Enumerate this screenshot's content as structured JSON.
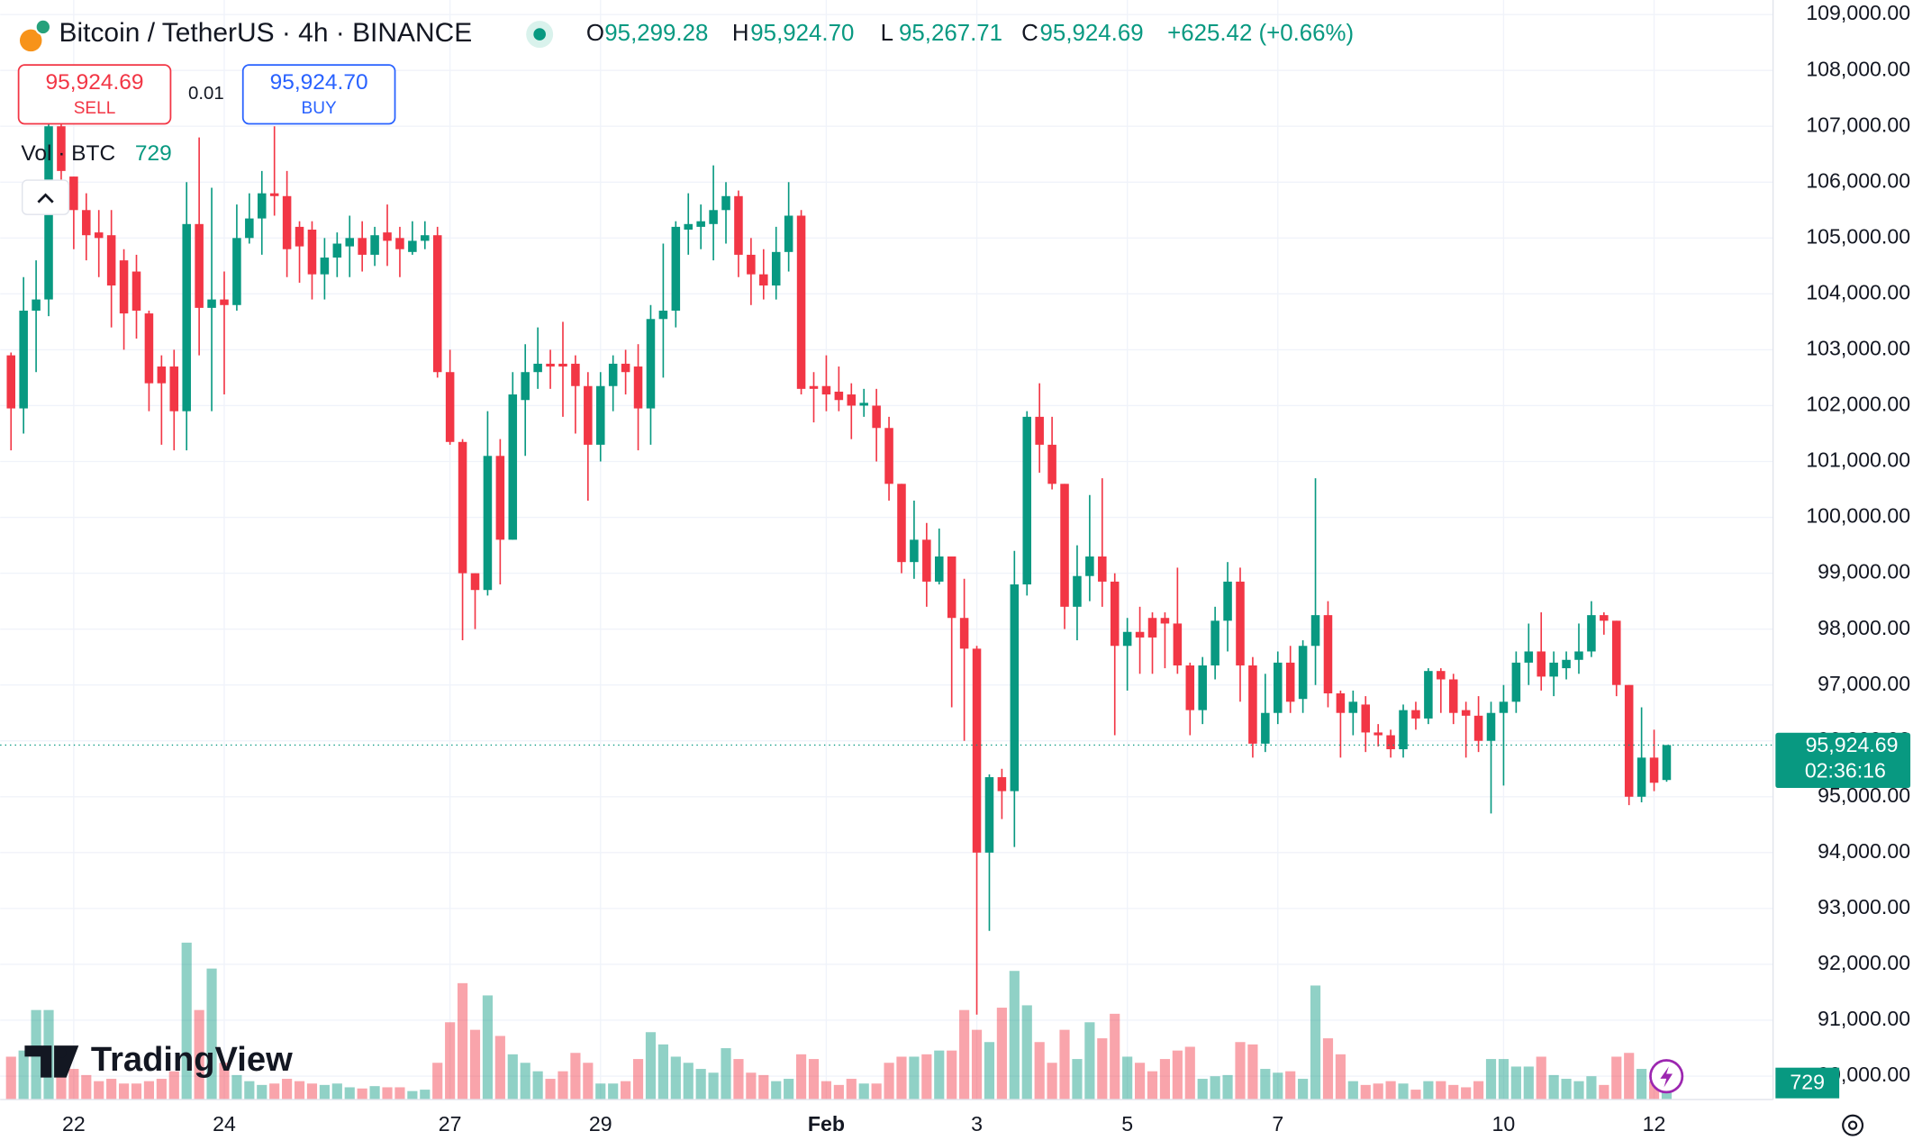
{
  "chart_data": {
    "type": "candlestick",
    "title": "Bitcoin / TetherUS · 4h · BINANCE",
    "header": [
      {
        "key": "O",
        "text": "95,299.28"
      },
      {
        "key": "H",
        "text": "95,924.70"
      },
      {
        "key": "L",
        "text": "95,267.71"
      },
      {
        "key": "C",
        "text": "95,924.69"
      }
    ],
    "change": "+625.42 (+0.66%)",
    "sell": {
      "price": "95,924.69",
      "label": "SELL"
    },
    "spread": "0.01",
    "buy": {
      "price": "95,924.70",
      "label": "BUY"
    },
    "volume_label": "Vol · BTC",
    "countdown": "02:36:16",
    "watermark": "TradingView",
    "categories": [
      null,
      null,
      null,
      null,
      null,
      "22",
      null,
      null,
      null,
      null,
      null,
      null,
      null,
      null,
      null,
      null,
      null,
      "24",
      null,
      null,
      null,
      null,
      null,
      null,
      null,
      null,
      null,
      null,
      null,
      null,
      null,
      null,
      null,
      null,
      null,
      "27",
      null,
      null,
      null,
      null,
      null,
      null,
      null,
      null,
      null,
      null,
      null,
      "29",
      null,
      null,
      null,
      null,
      null,
      null,
      null,
      null,
      null,
      null,
      null,
      null,
      null,
      null,
      null,
      null,
      null,
      "Feb",
      null,
      null,
      null,
      null,
      null,
      null,
      null,
      null,
      null,
      null,
      null,
      "3",
      null,
      null,
      null,
      null,
      null,
      null,
      null,
      null,
      null,
      null,
      null,
      "5",
      null,
      null,
      null,
      null,
      null,
      null,
      null,
      null,
      null,
      null,
      null,
      "7",
      null,
      null,
      null,
      null,
      null,
      null,
      null,
      null,
      null,
      null,
      null,
      null,
      null,
      null,
      null,
      null,
      null,
      "10",
      null,
      null,
      null,
      null,
      null,
      null,
      null,
      null,
      null,
      null,
      null,
      "12",
      null
    ],
    "open": [
      102900,
      101950,
      103700,
      103900,
      107000,
      106100,
      105500,
      105100,
      105050,
      104600,
      104400,
      103650,
      102700,
      102700,
      101900,
      105250,
      103750,
      103900,
      103800,
      105000,
      105350,
      105800,
      105750,
      105200,
      105150,
      104350,
      104650,
      104850,
      105000,
      104700,
      105100,
      105000,
      104750,
      104950,
      105050,
      102600,
      101350,
      99000,
      98700,
      101100,
      99600,
      102100,
      102600,
      102750,
      102750,
      102750,
      102350,
      101300,
      102350,
      102750,
      102700,
      101950,
      103550,
      103700,
      105150,
      105200,
      105250,
      105500,
      105750,
      104700,
      104350,
      104150,
      104750,
      105400,
      102350,
      102350,
      102250,
      102200,
      102000,
      102000,
      101600,
      100600,
      99200,
      99600,
      98850,
      99300,
      98200,
      97650,
      94000,
      95350,
      95100,
      98800,
      101800,
      101300,
      100600,
      98400,
      98950,
      99300,
      98850,
      97700,
      97950,
      98200,
      98200,
      98100,
      97350,
      96550,
      97350,
      98150,
      98850,
      97350,
      95950,
      96500,
      97400,
      96750,
      97700,
      98250,
      96850,
      96500,
      96650,
      96150,
      96100,
      95850,
      96550,
      96400,
      97250,
      97100,
      96550,
      96450,
      96000,
      96500,
      96700,
      97400,
      97600,
      97150,
      97300,
      97450,
      97600,
      98250,
      98150,
      97000,
      95000,
      95700,
      95299.28
    ],
    "high": [
      102950,
      104300,
      104600,
      107100,
      107300,
      106100,
      105800,
      105500,
      105500,
      104800,
      104700,
      103700,
      102900,
      103000,
      106000,
      106800,
      105900,
      104400,
      105600,
      105800,
      106200,
      107000,
      106200,
      105300,
      105300,
      105000,
      105100,
      105400,
      105300,
      105200,
      105600,
      105200,
      105300,
      105300,
      105200,
      103000,
      101400,
      99000,
      101900,
      101400,
      102600,
      103100,
      103400,
      103000,
      103500,
      102900,
      102600,
      102600,
      102900,
      103000,
      103100,
      103800,
      104900,
      105300,
      105800,
      105600,
      106300,
      106000,
      105850,
      105000,
      104800,
      105200,
      106000,
      105500,
      102600,
      102900,
      102700,
      102400,
      102300,
      102300,
      101800,
      100600,
      100300,
      99900,
      99800,
      99300,
      98900,
      97700,
      95400,
      95500,
      99400,
      101900,
      102400,
      101800,
      100600,
      99500,
      100400,
      100700,
      99000,
      98200,
      98400,
      98300,
      98300,
      99100,
      97400,
      97500,
      98400,
      99200,
      99100,
      97500,
      97200,
      97600,
      97700,
      97800,
      100700,
      98500,
      96900,
      96900,
      96800,
      96300,
      96200,
      96650,
      96700,
      97300,
      97300,
      97200,
      96700,
      96800,
      96700,
      97000,
      97600,
      98100,
      98300,
      97600,
      97600,
      98100,
      98500,
      98300,
      98150,
      97000,
      96600,
      96200,
      95924.7
    ],
    "low": [
      101200,
      101500,
      102600,
      103600,
      105500,
      104800,
      104600,
      104300,
      103400,
      103000,
      103200,
      101900,
      101300,
      101200,
      101200,
      102900,
      101900,
      102200,
      103700,
      104900,
      104700,
      105400,
      104300,
      104200,
      103900,
      103900,
      104300,
      104300,
      104400,
      104500,
      104500,
      104300,
      104700,
      104800,
      102500,
      101300,
      97800,
      98000,
      98600,
      98800,
      99600,
      101100,
      102300,
      102300,
      101800,
      101500,
      100300,
      101000,
      101900,
      102200,
      101200,
      101300,
      102500,
      103400,
      104700,
      104800,
      104600,
      104900,
      104300,
      103800,
      103900,
      103900,
      104400,
      102200,
      101700,
      101900,
      101900,
      101400,
      101800,
      101000,
      100300,
      99000,
      98900,
      98400,
      98800,
      96600,
      96000,
      91100,
      92600,
      94600,
      94100,
      98600,
      100800,
      100500,
      98000,
      97800,
      98500,
      98400,
      96100,
      96900,
      97200,
      97200,
      97300,
      97200,
      96100,
      96300,
      97100,
      97600,
      96700,
      95700,
      95800,
      96300,
      96500,
      96500,
      97000,
      96600,
      95700,
      96100,
      95800,
      95900,
      95700,
      95700,
      96200,
      96300,
      96500,
      96300,
      95700,
      95800,
      94700,
      95200,
      96500,
      97000,
      96900,
      96800,
      97100,
      97200,
      97500,
      97900,
      96800,
      94850,
      94900,
      95100,
      95267.71
    ],
    "close": [
      101950,
      103700,
      103900,
      107000,
      106200,
      105500,
      105050,
      105000,
      104150,
      103650,
      103700,
      102400,
      102400,
      101900,
      105250,
      103750,
      103900,
      103800,
      105000,
      105350,
      105800,
      105750,
      104800,
      104850,
      104350,
      104650,
      104900,
      105000,
      104700,
      105050,
      104950,
      104800,
      104950,
      105050,
      102600,
      101350,
      99000,
      98700,
      101100,
      99600,
      102200,
      102600,
      102750,
      102700,
      102700,
      102350,
      101300,
      102350,
      102750,
      102600,
      101950,
      103550,
      103700,
      105200,
      105250,
      105300,
      105500,
      105750,
      104700,
      104350,
      104150,
      104750,
      105400,
      102300,
      102300,
      102200,
      102100,
      102000,
      102050,
      101600,
      100600,
      99200,
      99600,
      98850,
      99300,
      98200,
      97650,
      94000,
      95350,
      95100,
      98800,
      101800,
      101300,
      100600,
      98400,
      98950,
      99300,
      98850,
      97700,
      97950,
      97850,
      97850,
      98100,
      97350,
      96550,
      97350,
      98150,
      98850,
      97350,
      95950,
      96500,
      97400,
      96700,
      97700,
      98250,
      96850,
      96500,
      96700,
      96150,
      96100,
      95850,
      96550,
      96400,
      97250,
      97100,
      96500,
      96450,
      96000,
      96500,
      96700,
      97400,
      97600,
      97150,
      97400,
      97450,
      97600,
      98250,
      98150,
      97000,
      95000,
      95700,
      95250,
      95924.69
    ],
    "volume": [
      1820,
      2080,
      3800,
      3800,
      2080,
      1300,
      1040,
      780,
      880,
      680,
      680,
      780,
      880,
      1200,
      6660,
      3800,
      5560,
      1560,
      1040,
      780,
      620,
      680,
      880,
      780,
      680,
      620,
      680,
      520,
      470,
      570,
      520,
      520,
      360,
      420,
      1560,
      3280,
      4940,
      2960,
      4420,
      2700,
      1920,
      1560,
      1200,
      880,
      1200,
      1980,
      1560,
      680,
      680,
      780,
      1720,
      2860,
      2340,
      1820,
      1560,
      1300,
      1140,
      2180,
      1720,
      1140,
      1040,
      780,
      880,
      1920,
      1720,
      780,
      620,
      880,
      680,
      680,
      1560,
      1820,
      1820,
      1920,
      2080,
      2080,
      3800,
      2960,
      2440,
      3900,
      5460,
      4000,
      2440,
      1560,
      2960,
      1720,
      3280,
      2600,
      3640,
      1820,
      1560,
      1200,
      1720,
      2080,
      2240,
      880,
      990,
      1040,
      2440,
      2340,
      1300,
      1140,
      1200,
      880,
      4840,
      2600,
      1920,
      780,
      620,
      680,
      780,
      680,
      420,
      780,
      780,
      620,
      520,
      780,
      1720,
      1720,
      1400,
      1400,
      1820,
      1040,
      880,
      780,
      990,
      620,
      1820,
      1980,
      1300,
      780,
      729
    ],
    "up_color": "#089981",
    "down_color": "#f23645",
    "ylim": [
      89580,
      109260
    ],
    "yticks": [
      {
        "value": 109000,
        "label": "109,000.00"
      },
      {
        "value": 108000,
        "label": "108,000.00"
      },
      {
        "value": 107000,
        "label": "107,000.00"
      },
      {
        "value": 106000,
        "label": "106,000.00"
      },
      {
        "value": 105000,
        "label": "105,000.00"
      },
      {
        "value": 104000,
        "label": "104,000.00"
      },
      {
        "value": 103000,
        "label": "103,000.00"
      },
      {
        "value": 102000,
        "label": "102,000.00"
      },
      {
        "value": 101000,
        "label": "101,000.00"
      },
      {
        "value": 100000,
        "label": "100,000.00"
      },
      {
        "value": 99000,
        "label": "99,000.00"
      },
      {
        "value": 98000,
        "label": "98,000.00"
      },
      {
        "value": 97000,
        "label": "97,000.00"
      },
      {
        "value": 96000,
        "label": "96,000.00"
      },
      {
        "value": 95000,
        "label": "95,000.00"
      },
      {
        "value": 94000,
        "label": "94,000.00"
      },
      {
        "value": 93000,
        "label": "93,000.00"
      },
      {
        "value": 92000,
        "label": "92,000.00"
      },
      {
        "value": 91000,
        "label": "91,000.00"
      },
      {
        "value": 90000,
        "label": "90,000.00"
      }
    ],
    "grid": true
  }
}
